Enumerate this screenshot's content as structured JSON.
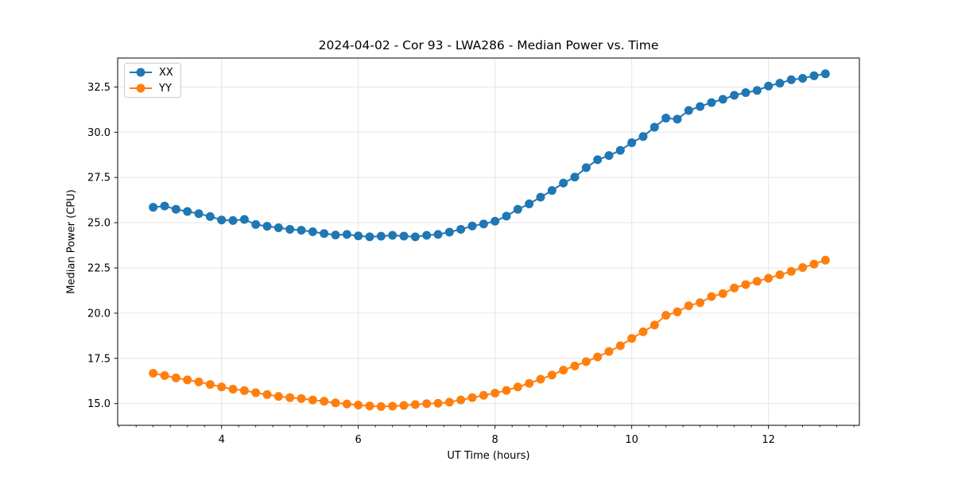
{
  "figure": {
    "background": "#ffffff",
    "axes_face": "#ffffff",
    "spine_color": "#000000",
    "grid_color": "#e5e5e5",
    "tick_color": "#000000"
  },
  "chart_data": {
    "type": "line",
    "title": "2024-04-02 - Cor 93 - LWA286 - Median Power vs. Time",
    "xlabel": "UT Time (hours)",
    "ylabel": "Median Power (CPU)",
    "xlim": [
      2.48,
      13.33
    ],
    "ylim": [
      13.8,
      34.1
    ],
    "xticks": [
      4,
      6,
      8,
      10,
      12
    ],
    "xtick_labels": [
      "4",
      "6",
      "8",
      "10",
      "12"
    ],
    "minor_xtick_step": 0.25,
    "yticks": [
      15.0,
      17.5,
      20.0,
      22.5,
      25.0,
      27.5,
      30.0,
      32.5
    ],
    "ytick_labels": [
      "15.0",
      "17.5",
      "20.0",
      "22.5",
      "25.0",
      "27.5",
      "30.0",
      "32.5"
    ],
    "grid": true,
    "legend_position": "upper left",
    "marker": "o",
    "x": [
      3.0,
      3.1667,
      3.3333,
      3.5,
      3.6667,
      3.8333,
      4.0,
      4.1667,
      4.3333,
      4.5,
      4.6667,
      4.8333,
      5.0,
      5.1667,
      5.3333,
      5.5,
      5.6667,
      5.8333,
      6.0,
      6.1667,
      6.3333,
      6.5,
      6.6667,
      6.8333,
      7.0,
      7.1667,
      7.3333,
      7.5,
      7.6667,
      7.8333,
      8.0,
      8.1667,
      8.3333,
      8.5,
      8.6667,
      8.8333,
      9.0,
      9.1667,
      9.3333,
      9.5,
      9.6667,
      9.8333,
      10.0,
      10.1667,
      10.3333,
      10.5,
      10.6667,
      10.8333,
      11.0,
      11.1667,
      11.3333,
      11.5,
      11.6667,
      11.8333,
      12.0,
      12.1667,
      12.3333,
      12.5,
      12.6667,
      12.8333
    ],
    "series": [
      {
        "name": "XX",
        "color": "#1f77b4",
        "values": [
          25.85,
          25.92,
          25.74,
          25.62,
          25.5,
          25.34,
          25.15,
          25.12,
          25.18,
          24.9,
          24.8,
          24.72,
          24.63,
          24.58,
          24.5,
          24.4,
          24.32,
          24.35,
          24.27,
          24.22,
          24.25,
          24.3,
          24.26,
          24.22,
          24.3,
          24.35,
          24.48,
          24.63,
          24.82,
          24.93,
          25.08,
          25.36,
          25.74,
          26.04,
          26.41,
          26.78,
          27.19,
          27.52,
          28.04,
          28.48,
          28.71,
          29.0,
          29.42,
          29.76,
          30.28,
          30.78,
          30.72,
          31.2,
          31.42,
          31.64,
          31.82,
          32.04,
          32.19,
          32.31,
          32.55,
          32.71,
          32.9,
          32.98,
          33.12,
          33.23
        ]
      },
      {
        "name": "YY",
        "color": "#ff7f0e",
        "values": [
          16.68,
          16.55,
          16.42,
          16.31,
          16.2,
          16.06,
          15.92,
          15.8,
          15.72,
          15.6,
          15.5,
          15.4,
          15.33,
          15.28,
          15.2,
          15.13,
          15.04,
          14.98,
          14.92,
          14.87,
          14.84,
          14.86,
          14.9,
          14.95,
          15.0,
          15.02,
          15.08,
          15.2,
          15.33,
          15.46,
          15.58,
          15.73,
          15.92,
          16.12,
          16.35,
          16.58,
          16.85,
          17.08,
          17.32,
          17.58,
          17.88,
          18.2,
          18.6,
          18.97,
          19.34,
          19.88,
          20.07,
          20.41,
          20.58,
          20.92,
          21.08,
          21.39,
          21.58,
          21.76,
          21.93,
          22.12,
          22.31,
          22.52,
          22.71,
          22.93
        ]
      }
    ]
  }
}
